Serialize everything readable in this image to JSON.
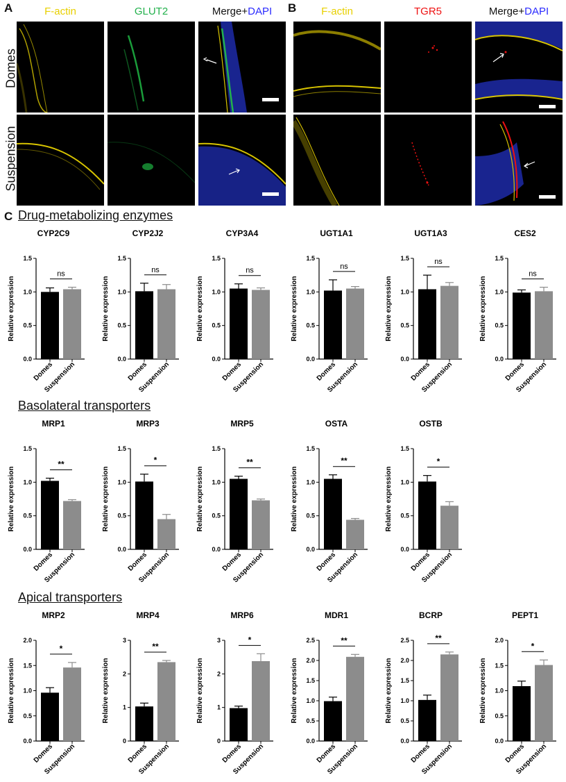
{
  "panels": {
    "A": {
      "letter": "A",
      "columns": [
        {
          "text": "F-actin",
          "color": "#e8d000"
        },
        {
          "text": "GLUT2",
          "color": "#22b14c"
        },
        {
          "text": "Merge+",
          "color": "#111111",
          "suffix": "DAPI",
          "suffix_color": "#2a2aff"
        }
      ],
      "rows": [
        "Domes",
        "Suspension"
      ]
    },
    "B": {
      "letter": "B",
      "columns": [
        {
          "text": "F-actin",
          "color": "#e8d000"
        },
        {
          "text": "TGR5",
          "color": "#ee1111"
        },
        {
          "text": "Merge+",
          "color": "#111111",
          "suffix": "DAPI",
          "suffix_color": "#2a2aff"
        }
      ]
    },
    "C": {
      "letter": "C"
    }
  },
  "sections": [
    {
      "title": "Drug-metabolizing enzymes"
    },
    {
      "title": "Basolateral transporters"
    },
    {
      "title": "Apical transporters"
    }
  ],
  "common": {
    "ylabel": "Relative expression",
    "categories": [
      "Domes",
      "Suspension"
    ],
    "colors": {
      "domes": "#000000",
      "suspension": "#8c8c8c"
    }
  },
  "chart_data": [
    {
      "type": "bar",
      "title": "CYP2C9",
      "categories": [
        "Domes",
        "Suspension"
      ],
      "values": [
        1.0,
        1.04
      ],
      "errors": [
        0.06,
        0.03
      ],
      "ylim": [
        0,
        1.5
      ],
      "yticks": [
        "0.0",
        "0.5",
        "1.0",
        "1.5"
      ],
      "significance": "ns"
    },
    {
      "type": "bar",
      "title": "CYP2J2",
      "categories": [
        "Domes",
        "Suspension"
      ],
      "values": [
        1.01,
        1.04
      ],
      "errors": [
        0.12,
        0.07
      ],
      "ylim": [
        0,
        1.5
      ],
      "yticks": [
        "0.0",
        "0.5",
        "1.0",
        "1.5"
      ],
      "significance": "ns"
    },
    {
      "type": "bar",
      "title": "CYP3A4",
      "categories": [
        "Domes",
        "Suspension"
      ],
      "values": [
        1.05,
        1.03
      ],
      "errors": [
        0.07,
        0.03
      ],
      "ylim": [
        0,
        1.5
      ],
      "yticks": [
        "0.0",
        "0.5",
        "1.0",
        "1.5"
      ],
      "significance": "ns"
    },
    {
      "type": "bar",
      "title": "UGT1A1",
      "categories": [
        "Domes",
        "Suspension"
      ],
      "values": [
        1.02,
        1.05
      ],
      "errors": [
        0.16,
        0.03
      ],
      "ylim": [
        0,
        1.5
      ],
      "yticks": [
        "0.0",
        "0.5",
        "1.0",
        "1.5"
      ],
      "significance": "ns"
    },
    {
      "type": "bar",
      "title": "UGT1A3",
      "categories": [
        "Domes",
        "Suspension"
      ],
      "values": [
        1.04,
        1.09
      ],
      "errors": [
        0.21,
        0.05
      ],
      "ylim": [
        0,
        1.5
      ],
      "yticks": [
        "0.0",
        "0.5",
        "1.0",
        "1.5"
      ],
      "significance": "ns"
    },
    {
      "type": "bar",
      "title": "CES2",
      "categories": [
        "Domes",
        "Suspension"
      ],
      "values": [
        0.99,
        1.01
      ],
      "errors": [
        0.04,
        0.06
      ],
      "ylim": [
        0,
        1.5
      ],
      "yticks": [
        "0.0",
        "0.5",
        "1.0",
        "1.5"
      ],
      "significance": "ns"
    },
    {
      "type": "bar",
      "title": "MRP1",
      "categories": [
        "Domes",
        "Suspension"
      ],
      "values": [
        1.02,
        0.72
      ],
      "errors": [
        0.04,
        0.02
      ],
      "ylim": [
        0,
        1.5
      ],
      "yticks": [
        "0.0",
        "0.5",
        "1.0",
        "1.5"
      ],
      "significance": "**"
    },
    {
      "type": "bar",
      "title": "MRP3",
      "categories": [
        "Domes",
        "Suspension"
      ],
      "values": [
        1.01,
        0.45
      ],
      "errors": [
        0.11,
        0.07
      ],
      "ylim": [
        0,
        1.5
      ],
      "yticks": [
        "0.0",
        "0.5",
        "1.0",
        "1.5"
      ],
      "significance": "*"
    },
    {
      "type": "bar",
      "title": "MRP5",
      "categories": [
        "Domes",
        "Suspension"
      ],
      "values": [
        1.05,
        0.73
      ],
      "errors": [
        0.04,
        0.02
      ],
      "ylim": [
        0,
        1.5
      ],
      "yticks": [
        "0.0",
        "0.5",
        "1.0",
        "1.5"
      ],
      "significance": "**"
    },
    {
      "type": "bar",
      "title": "OSTA",
      "categories": [
        "Domes",
        "Suspension"
      ],
      "values": [
        1.05,
        0.44
      ],
      "errors": [
        0.06,
        0.02
      ],
      "ylim": [
        0,
        1.5
      ],
      "yticks": [
        "0.0",
        "0.5",
        "1.0",
        "1.5"
      ],
      "significance": "**"
    },
    {
      "type": "bar",
      "title": "OSTB",
      "categories": [
        "Domes",
        "Suspension"
      ],
      "values": [
        1.01,
        0.65
      ],
      "errors": [
        0.09,
        0.06
      ],
      "ylim": [
        0,
        1.5
      ],
      "yticks": [
        "0.0",
        "0.5",
        "1.0",
        "1.5"
      ],
      "significance": "*"
    },
    {
      "type": "bar",
      "title": "MRP2",
      "categories": [
        "Domes",
        "Suspension"
      ],
      "values": [
        0.96,
        1.46
      ],
      "errors": [
        0.1,
        0.1
      ],
      "ylim": [
        0,
        2.0
      ],
      "yticks": [
        "0.0",
        "0.5",
        "1.0",
        "1.5",
        "2.0"
      ],
      "significance": "*"
    },
    {
      "type": "bar",
      "title": "MRP4",
      "categories": [
        "Domes",
        "Suspension"
      ],
      "values": [
        1.03,
        2.35
      ],
      "errors": [
        0.1,
        0.05
      ],
      "ylim": [
        0,
        3
      ],
      "yticks": [
        "0",
        "1",
        "2",
        "3"
      ],
      "significance": "**"
    },
    {
      "type": "bar",
      "title": "MRP6",
      "categories": [
        "Domes",
        "Suspension"
      ],
      "values": [
        0.98,
        2.38
      ],
      "errors": [
        0.06,
        0.22
      ],
      "ylim": [
        0,
        3
      ],
      "yticks": [
        "0",
        "1",
        "2",
        "3"
      ],
      "significance": "*"
    },
    {
      "type": "bar",
      "title": "MDR1",
      "categories": [
        "Domes",
        "Suspension"
      ],
      "values": [
        0.99,
        2.09
      ],
      "errors": [
        0.1,
        0.06
      ],
      "ylim": [
        0,
        2.5
      ],
      "yticks": [
        "0.0",
        "0.5",
        "1.0",
        "1.5",
        "2.0",
        "2.5"
      ],
      "significance": "**"
    },
    {
      "type": "bar",
      "title": "BCRP",
      "categories": [
        "Domes",
        "Suspension"
      ],
      "values": [
        1.02,
        2.15
      ],
      "errors": [
        0.12,
        0.06
      ],
      "ylim": [
        0,
        2.5
      ],
      "yticks": [
        "0.0",
        "0.5",
        "1.0",
        "1.5",
        "2.0",
        "2.5"
      ],
      "significance": "**"
    },
    {
      "type": "bar",
      "title": "PEPT1",
      "categories": [
        "Domes",
        "Suspension"
      ],
      "values": [
        1.09,
        1.51
      ],
      "errors": [
        0.1,
        0.1
      ],
      "ylim": [
        0,
        2.0
      ],
      "yticks": [
        "0.0",
        "0.5",
        "1.0",
        "1.5",
        "2.0"
      ],
      "significance": "*"
    }
  ]
}
